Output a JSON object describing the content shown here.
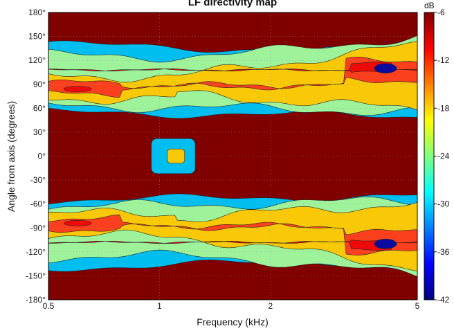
{
  "chart_data": {
    "type": "heatmap",
    "title": "LF directivity map",
    "xlabel": "Frequency (kHz)",
    "ylabel": "Angle from axis (degrees)",
    "x_scale": "log",
    "xlim": [
      0.5,
      5
    ],
    "ylim": [
      -180,
      180
    ],
    "x_ticks": [
      0.5,
      1,
      2,
      5
    ],
    "x_tick_labels": [
      "0.5",
      "1",
      "2",
      "5"
    ],
    "y_ticks": [
      180,
      150,
      120,
      90,
      60,
      30,
      0,
      -30,
      -60,
      -90,
      -120,
      -150,
      -180
    ],
    "y_tick_labels": [
      "180°",
      "150°",
      "120°",
      "90°",
      "60°",
      "30°",
      "0°",
      "-30°",
      "-60°",
      "-90°",
      "-120°",
      "-150°",
      "-180°"
    ],
    "colorbar": {
      "unit": "dB",
      "range": [
        -42,
        -6
      ],
      "ticks": [
        -6,
        -12,
        -18,
        -24,
        -30,
        -36,
        -42
      ],
      "tick_labels": [
        "-6",
        "-12",
        "-18",
        "-24",
        "-30",
        "-36",
        "-42"
      ],
      "colormap": "jet"
    },
    "grid": true,
    "symmetric_about_0": true,
    "contour_levels": [
      -36,
      -30,
      -24,
      -18,
      -12,
      -9
    ],
    "level_colors": [
      "#0b0c9f",
      "#00bff0",
      "#9ef29a",
      "#f9c806",
      "#fc3f1c",
      "#ef0a0a",
      "#800000"
    ],
    "region_levels_db": [
      {
        "x": [
          0.5,
          5
        ],
        "y": [
          -30,
          30
        ],
        "level": -6
      },
      {
        "x": [
          0.5,
          5
        ],
        "y": [
          -180,
          -135
        ],
        "level": -6
      },
      {
        "x": [
          0.5,
          5
        ],
        "y": [
          135,
          180
        ],
        "level": -6
      },
      {
        "x": [
          0.95,
          1.2
        ],
        "y": [
          -20,
          20
        ],
        "level": -12
      },
      {
        "x": [
          1.05,
          1.15
        ],
        "y": [
          -8,
          8
        ],
        "level": -18
      },
      {
        "x": [
          0.5,
          5
        ],
        "y": [
          60,
          110
        ],
        "level": -18
      },
      {
        "x": [
          0.5,
          5
        ],
        "y": [
          -110,
          -60
        ],
        "level": -18
      },
      {
        "x": [
          0.5,
          0.7
        ],
        "y": [
          75,
          95
        ],
        "level": -24
      },
      {
        "x": [
          0.5,
          0.7
        ],
        "y": [
          -95,
          -75
        ],
        "level": -24
      },
      {
        "x": [
          0.55,
          0.65
        ],
        "y": [
          80,
          90
        ],
        "level": -30
      },
      {
        "x": [
          0.55,
          0.65
        ],
        "y": [
          -90,
          -80
        ],
        "level": -30
      },
      {
        "x": [
          1.4,
          5
        ],
        "y": [
          60,
          140
        ],
        "level": -24
      },
      {
        "x": [
          1.4,
          5
        ],
        "y": [
          -140,
          -60
        ],
        "level": -24
      },
      {
        "x": [
          3.6,
          4.5
        ],
        "y": [
          95,
          125
        ],
        "level": -30
      },
      {
        "x": [
          3.6,
          4.5
        ],
        "y": [
          -125,
          -95
        ],
        "level": -30
      },
      {
        "x": [
          3.9,
          4.3
        ],
        "y": [
          105,
          115
        ],
        "level": -36
      },
      {
        "x": [
          3.9,
          4.3
        ],
        "y": [
          -115,
          -105
        ],
        "level": -36
      }
    ]
  }
}
